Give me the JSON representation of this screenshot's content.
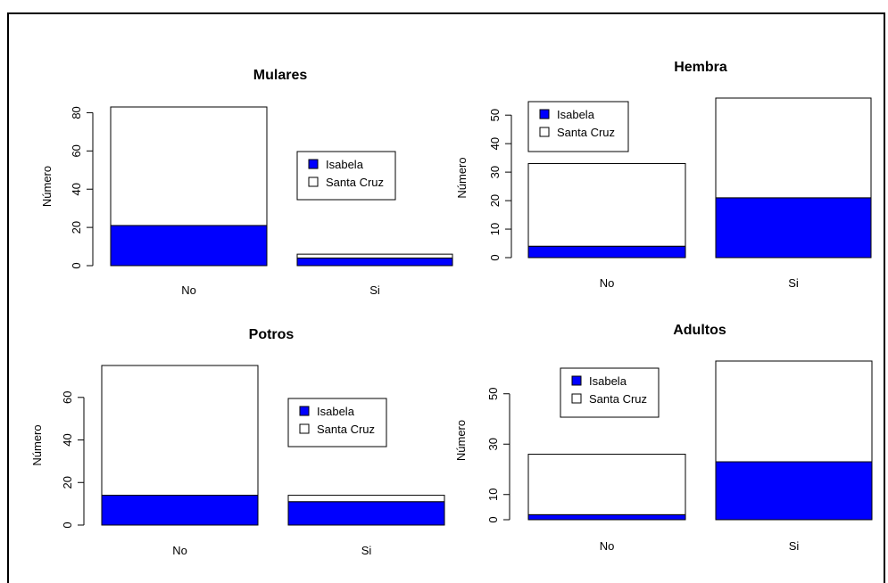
{
  "colors": {
    "isabela": "#0000ff",
    "santa_cruz": "#ffffff",
    "border": "#000000"
  },
  "chart_data": [
    {
      "type": "bar",
      "stacked": true,
      "title": "Mulares",
      "ylabel": "Número",
      "categories": [
        "No",
        "Si"
      ],
      "series": [
        {
          "name": "Isabela",
          "values": [
            21,
            4
          ]
        },
        {
          "name": "Santa Cruz",
          "values": [
            62,
            2
          ]
        }
      ],
      "yticks": [
        0,
        20,
        40,
        60,
        80
      ],
      "ylim": [
        0,
        83
      ],
      "legend": [
        "Isabela",
        "Santa Cruz"
      ],
      "legend_position": "right-center"
    },
    {
      "type": "bar",
      "stacked": true,
      "title": "Hembra",
      "ylabel": "Número",
      "categories": [
        "No",
        "Si"
      ],
      "series": [
        {
          "name": "Isabela",
          "values": [
            4,
            21
          ]
        },
        {
          "name": "Santa Cruz",
          "values": [
            29,
            35
          ]
        }
      ],
      "yticks": [
        0,
        10,
        20,
        30,
        40,
        50
      ],
      "ylim": [
        0,
        56
      ],
      "legend": [
        "Isabela",
        "Santa Cruz"
      ],
      "legend_position": "top-left"
    },
    {
      "type": "bar",
      "stacked": true,
      "title": "Potros",
      "ylabel": "Número",
      "categories": [
        "No",
        "Si"
      ],
      "series": [
        {
          "name": "Isabela",
          "values": [
            14,
            11
          ]
        },
        {
          "name": "Santa Cruz",
          "values": [
            61,
            3
          ]
        }
      ],
      "yticks": [
        0,
        20,
        40,
        60
      ],
      "ylim": [
        0,
        75
      ],
      "legend": [
        "Isabela",
        "Santa Cruz"
      ],
      "legend_position": "right-center"
    },
    {
      "type": "bar",
      "stacked": true,
      "title": "Adultos",
      "ylabel": "Número",
      "categories": [
        "No",
        "Si"
      ],
      "series": [
        {
          "name": "Isabela",
          "values": [
            2,
            23
          ]
        },
        {
          "name": "Santa Cruz",
          "values": [
            24,
            40
          ]
        }
      ],
      "yticks": [
        0,
        10,
        30,
        50
      ],
      "ylim": [
        0,
        63
      ],
      "legend": [
        "Isabela",
        "Santa Cruz"
      ],
      "legend_position": "top-left"
    }
  ]
}
